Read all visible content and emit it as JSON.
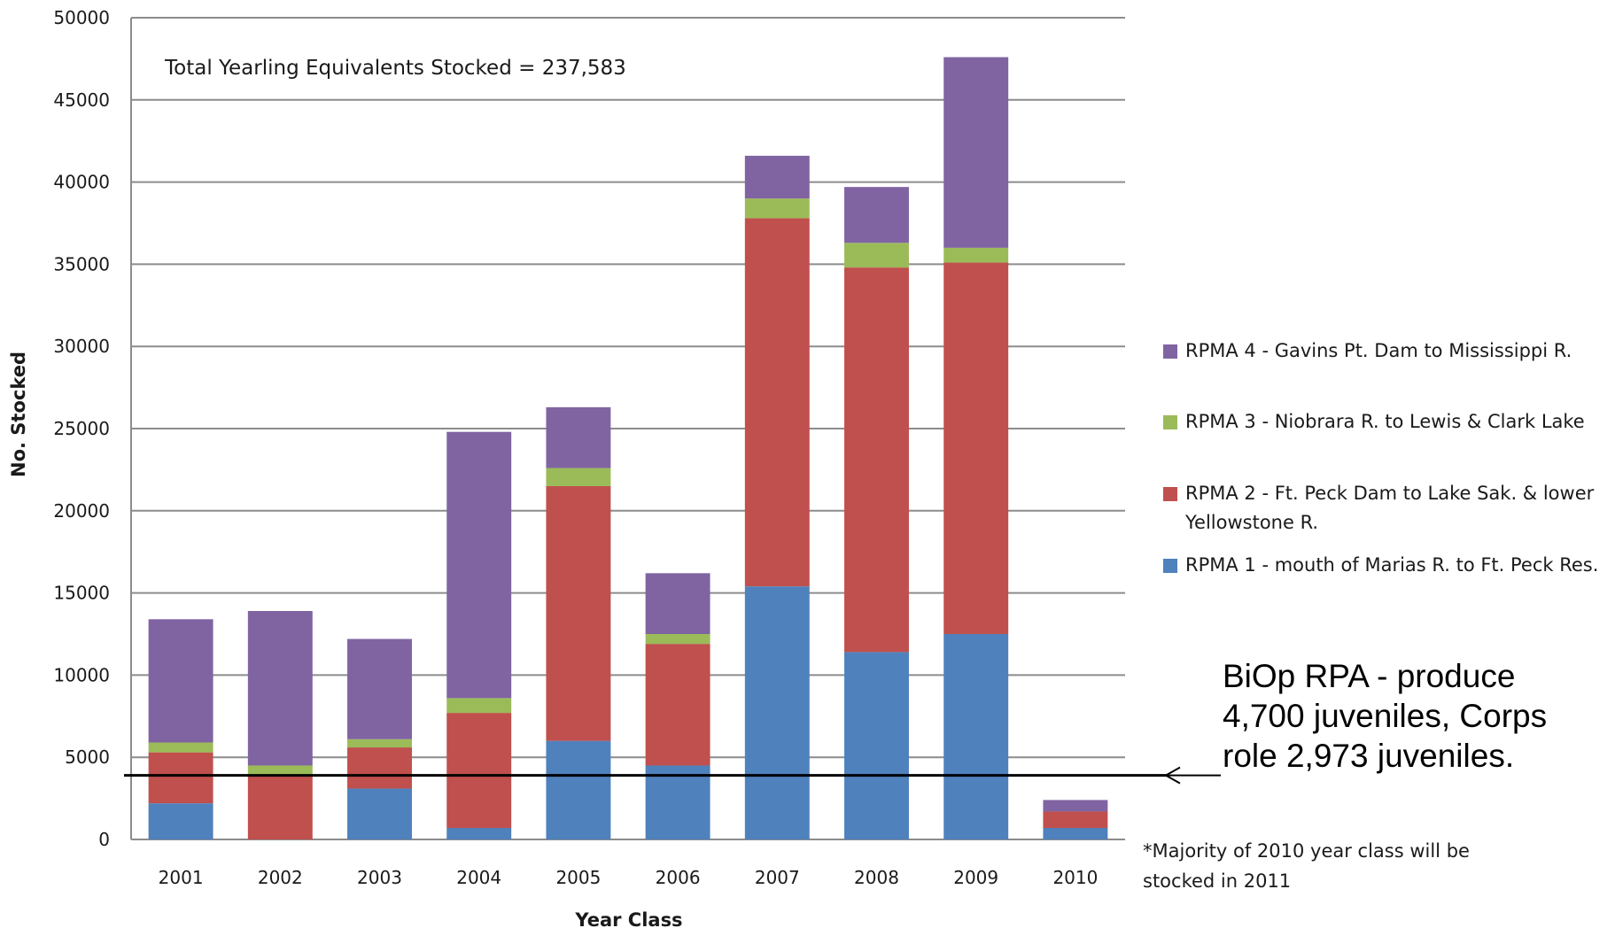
{
  "chart_data": {
    "type": "bar",
    "stacked": true,
    "categories": [
      "2001",
      "2002",
      "2003",
      "2004",
      "2005",
      "2006",
      "2007",
      "2008",
      "2009",
      "2010"
    ],
    "series": [
      {
        "name": "RPMA 1 - mouth of Marias R. to Ft. Peck Res.",
        "color": "#4f81bd",
        "values": [
          2200,
          0,
          3100,
          700,
          6000,
          4500,
          15400,
          11400,
          12500,
          700
        ]
      },
      {
        "name": "RPMA 2 - Ft. Peck Dam to Lake Sak. & lower Yellowstone R.",
        "color": "#c0504d",
        "values": [
          3100,
          3900,
          2500,
          7000,
          15500,
          7400,
          22400,
          23400,
          22600,
          1000
        ]
      },
      {
        "name": "RPMA 3 - Niobrara R. to Lewis & Clark Lake",
        "color": "#9bbb59",
        "values": [
          600,
          600,
          500,
          900,
          1100,
          600,
          1200,
          1500,
          900,
          0
        ]
      },
      {
        "name": "RPMA 4 - Gavins Pt. Dam to Mississippi R.",
        "color": "#8064a2",
        "values": [
          7500,
          9400,
          6100,
          16200,
          3700,
          3700,
          2600,
          3400,
          11600,
          700
        ]
      }
    ],
    "ylim": [
      0,
      50000
    ],
    "yticks": [
      "0",
      "5000",
      "10000",
      "15000",
      "20000",
      "25000",
      "30000",
      "35000",
      "40000",
      "45000",
      "50000"
    ],
    "xlabel": "Year Class",
    "ylabel": "No. Stocked",
    "grid": true,
    "legend_position": "right",
    "reference_line": {
      "value": 3900,
      "label_lines": [
        "BiOp RPA - produce",
        "4,700 juveniles, Corps",
        "role 2,973 juveniles."
      ]
    },
    "annotation": "Total Yearling Equivalents Stocked = 237,583",
    "footnote_lines": [
      "*Majority of 2010 year class will be",
      "stocked in 2011"
    ]
  },
  "legend": [
    {
      "lines": [
        "RPMA 4 - Gavins Pt. Dam to Mississippi R."
      ],
      "color": "#8064a2"
    },
    {
      "lines": [
        "RPMA 3 - Niobrara R. to Lewis & Clark Lake"
      ],
      "color": "#9bbb59"
    },
    {
      "lines": [
        "RPMA 2 - Ft. Peck Dam to Lake Sak. & lower",
        "Yellowstone R."
      ],
      "color": "#c0504d"
    },
    {
      "lines": [
        "RPMA 1 - mouth of Marias R. to Ft. Peck Res."
      ],
      "color": "#4f81bd"
    }
  ]
}
